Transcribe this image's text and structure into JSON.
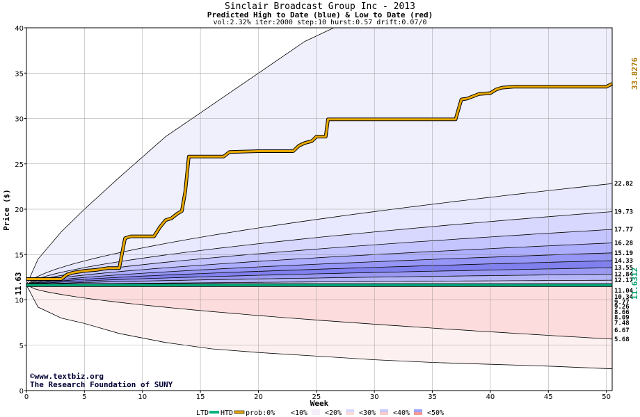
{
  "chart_data": {
    "type": "area",
    "title": "Sinclair Broadcast Group Inc - 2013",
    "subtitle": "Predicted High to Date (blue) &  Low to Date (red)",
    "params": "vol:2.32% iter:2000 step:10 hurst:0.57 drift:0.07/0",
    "xlabel": "Week",
    "ylabel": "Price ($)",
    "xlim": [
      0,
      50.5
    ],
    "ylim": [
      0,
      40
    ],
    "xticks": [
      "0",
      "5",
      "10",
      "15",
      "20",
      "25",
      "30",
      "35",
      "40",
      "45",
      "50"
    ],
    "yticks": [
      "0",
      "5",
      "10",
      "15",
      "20",
      "25",
      "30",
      "35",
      "40"
    ],
    "grid": true,
    "start_price": 11.63,
    "start_label": "11.63",
    "ltd_label": "11.6312",
    "htd_label": "33.8276",
    "credit_1": "©www.textbiz.org",
    "credit_2": "The Research Foundation of SUNY",
    "outer_high": {
      "x": [
        0,
        1,
        3,
        5,
        8,
        12,
        16,
        20,
        24,
        26.5
      ],
      "y": [
        11.63,
        14.5,
        17.5,
        20,
        23.5,
        28,
        31.5,
        35,
        38.5,
        40
      ]
    },
    "outer_low": {
      "x": [
        0,
        1,
        3,
        5,
        8,
        12,
        16,
        20,
        25,
        30,
        35,
        40,
        45,
        50.5
      ],
      "y": [
        11.63,
        9.2,
        8,
        7.4,
        6.3,
        5.3,
        4.6,
        4.2,
        3.8,
        3.4,
        3.1,
        2.9,
        2.7,
        2.4
      ]
    },
    "high_quantiles": [
      {
        "label": "22.82",
        "end": 22.82,
        "color": "#e8e8ff"
      },
      {
        "label": "19.73",
        "end": 19.73,
        "color": "#d8d8ff"
      },
      {
        "label": "17.77",
        "end": 17.77,
        "color": "#c4c4ff"
      },
      {
        "label": "16.28",
        "end": 16.28,
        "color": "#aeaeff"
      },
      {
        "label": "15.19",
        "end": 15.19,
        "color": "#9696f6"
      },
      {
        "label": "14.33",
        "end": 14.33,
        "color": "#8080ee"
      },
      {
        "label": "13.55",
        "end": 13.55,
        "color": "#9a9af4"
      },
      {
        "label": "12.84",
        "end": 12.84,
        "color": "#b4b4f8"
      },
      {
        "label": "12.17",
        "end": 12.17,
        "color": "#d4d4fc"
      }
    ],
    "low_quantiles": [
      {
        "label": "11.04",
        "end": 11.04,
        "color": "#fde4e4"
      },
      {
        "label": "10.34",
        "end": 10.34,
        "color": "#fbcaca"
      },
      {
        "label": "9.77",
        "end": 9.77,
        "color": "#f8b0b0"
      },
      {
        "label": "9.26",
        "end": 9.26,
        "color": "#f59898"
      },
      {
        "label": "8.66",
        "end": 8.66,
        "color": "#f08080"
      },
      {
        "label": "8.09",
        "end": 8.09,
        "color": "#f29090"
      },
      {
        "label": "7.48",
        "end": 7.48,
        "color": "#f6aaaa"
      },
      {
        "label": "6.67",
        "end": 6.67,
        "color": "#f9c4c4"
      },
      {
        "label": "5.68",
        "end": 5.68,
        "color": "#fcdcdc"
      }
    ],
    "ltd_series": {
      "name": "LTD",
      "color": "#00b080",
      "x": [
        0,
        50.5
      ],
      "y": [
        11.63,
        11.63
      ]
    },
    "htd_series": {
      "name": "HTD",
      "color": "#e8a800",
      "x": [
        0,
        3,
        3.5,
        4,
        5,
        6,
        7,
        8,
        8.3,
        8.5,
        9,
        11,
        11.5,
        12,
        12.5,
        13,
        13.4,
        13.7,
        14,
        15,
        17,
        17.5,
        20,
        23,
        23.5,
        24,
        24.6,
        25,
        25.8,
        26,
        30,
        36,
        37,
        37.5,
        38,
        39,
        40,
        40.5,
        41,
        42,
        45,
        49,
        50,
        50.5
      ],
      "y": [
        12.3,
        12.3,
        12.8,
        13.0,
        13.2,
        13.3,
        13.5,
        13.5,
        15.5,
        16.8,
        17.0,
        17.0,
        18.0,
        18.8,
        19.0,
        19.5,
        19.8,
        22.0,
        25.8,
        25.8,
        25.8,
        26.3,
        26.4,
        26.4,
        27.0,
        27.3,
        27.5,
        28.0,
        28.0,
        29.9,
        29.9,
        29.9,
        29.9,
        32.1,
        32.2,
        32.7,
        32.8,
        33.2,
        33.4,
        33.5,
        33.5,
        33.5,
        33.5,
        33.83
      ]
    }
  },
  "legend": {
    "ltd": "LTD",
    "htd": "HTD",
    "prob": "prob:0%",
    "p10": "<10%",
    "p20": "<20%",
    "p30": "<30%",
    "p40": "<40%",
    "p50": "<50%",
    "colors": {
      "c0": "#ffffff",
      "c10": "#f7f0f8",
      "c20": "#efddf2",
      "c30_hi": "#c8c8ff",
      "c30_lo": "#fbcaca",
      "c40_hi": "#a0a0ff",
      "c40_lo": "#f59898",
      "c50_hi": "#8080ee",
      "c50_lo": "#f06060"
    }
  }
}
